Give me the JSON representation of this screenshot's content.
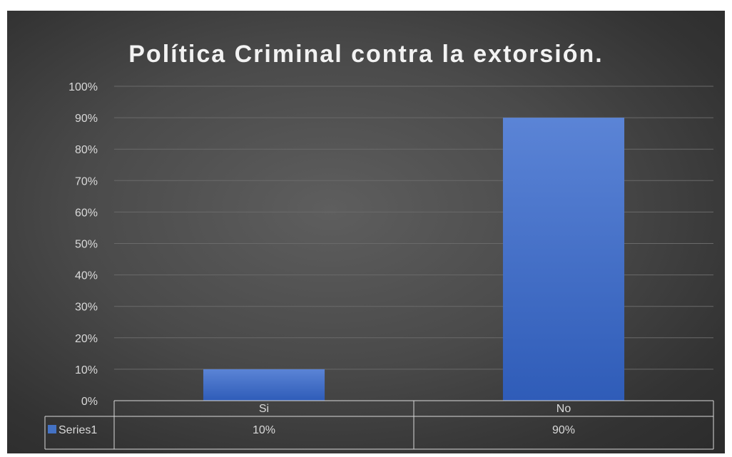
{
  "chart_data": {
    "type": "bar",
    "title": "Política Criminal contra la extorsión.",
    "categories": [
      "Si",
      "No"
    ],
    "series": [
      {
        "name": "Series1",
        "values": [
          0.1,
          0.9
        ],
        "labels": [
          "10%",
          "90%"
        ],
        "color": "#4472C4"
      }
    ],
    "y_ticks": [
      "0%",
      "10%",
      "20%",
      "30%",
      "40%",
      "50%",
      "60%",
      "70%",
      "80%",
      "90%",
      "100%"
    ],
    "ylim": [
      0,
      1
    ],
    "grid": true,
    "data_table": true,
    "legend": "in-data-table"
  },
  "colors": {
    "background": "#474747",
    "bar_top": "#5B84D6",
    "bar_bottom": "#2F5CB8",
    "text": "#D9D9D9",
    "title": "#F2F2F2",
    "grid": "#6A6A6A",
    "table_border": "#D9D9D9"
  }
}
